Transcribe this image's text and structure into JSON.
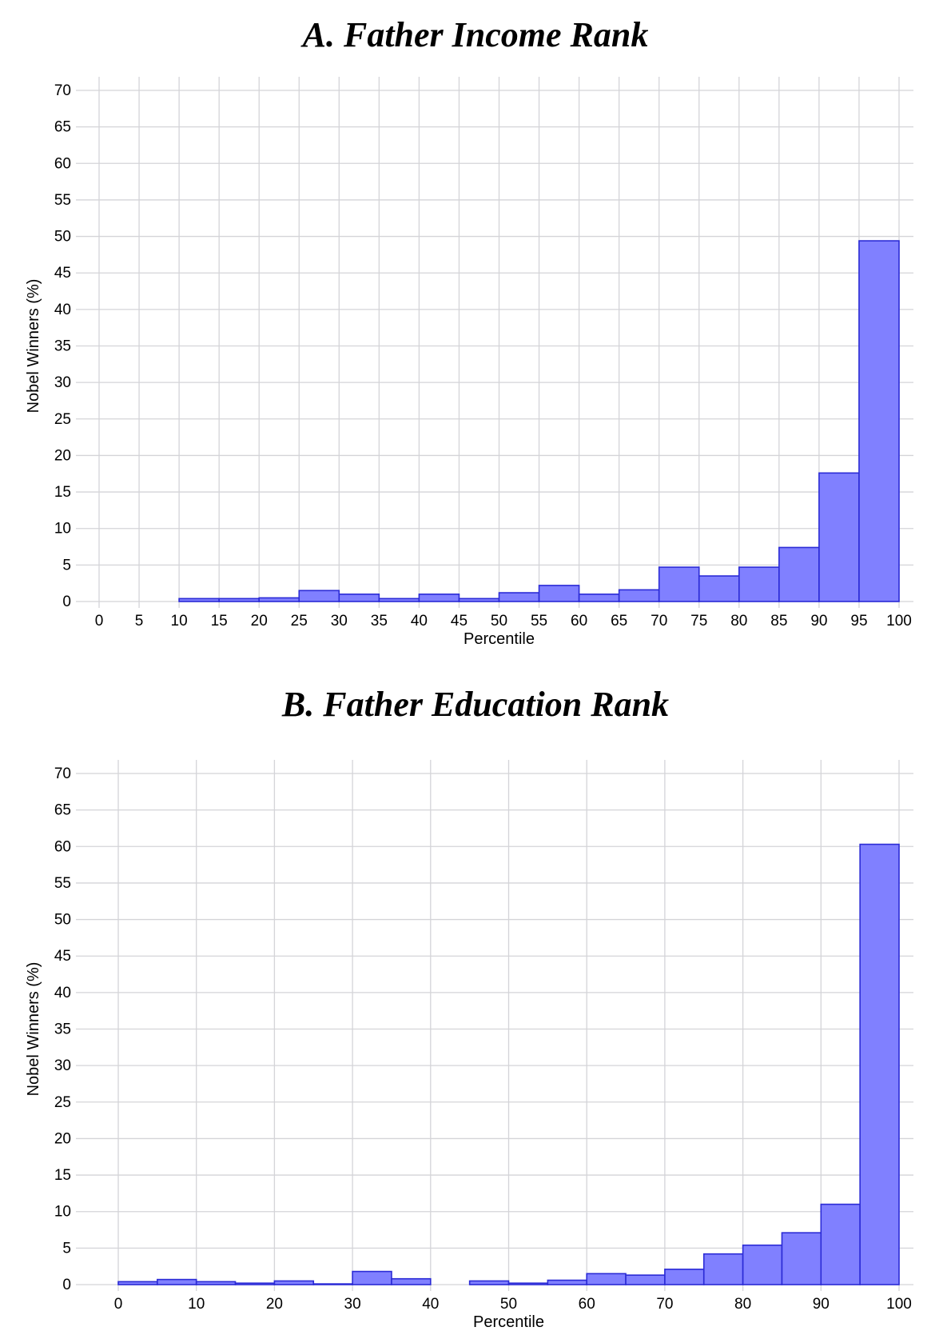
{
  "chart_data": [
    {
      "type": "bar",
      "title": "A. Father Income Rank",
      "xlabel": "Percentile",
      "ylabel": "Nobel Winners (%)",
      "xlim": [
        0,
        100
      ],
      "ylim": [
        0,
        70
      ],
      "xticks": [
        0,
        5,
        10,
        15,
        20,
        25,
        30,
        35,
        40,
        45,
        50,
        55,
        60,
        65,
        70,
        75,
        80,
        85,
        90,
        95,
        100
      ],
      "yticks": [
        0,
        5,
        10,
        15,
        20,
        25,
        30,
        35,
        40,
        45,
        50,
        55,
        60,
        65,
        70
      ],
      "bin_width": 5,
      "grid": true,
      "bars": [
        {
          "x": 10,
          "value": 0.4
        },
        {
          "x": 15,
          "value": 0.4
        },
        {
          "x": 20,
          "value": 0.5
        },
        {
          "x": 25,
          "value": 1.5
        },
        {
          "x": 30,
          "value": 1.0
        },
        {
          "x": 35,
          "value": 0.4
        },
        {
          "x": 40,
          "value": 1.0
        },
        {
          "x": 45,
          "value": 0.4
        },
        {
          "x": 50,
          "value": 1.2
        },
        {
          "x": 55,
          "value": 2.2
        },
        {
          "x": 60,
          "value": 1.0
        },
        {
          "x": 65,
          "value": 1.6
        },
        {
          "x": 70,
          "value": 4.7
        },
        {
          "x": 75,
          "value": 3.5
        },
        {
          "x": 80,
          "value": 4.7
        },
        {
          "x": 85,
          "value": 7.4
        },
        {
          "x": 90,
          "value": 17.6
        },
        {
          "x": 95,
          "value": 49.4
        }
      ]
    },
    {
      "type": "bar",
      "title": "B. Father Education Rank",
      "xlabel": "Percentile",
      "ylabel": "Nobel Winners (%)",
      "xlim": [
        0,
        100
      ],
      "ylim": [
        0,
        70
      ],
      "xticks": [
        0,
        10,
        20,
        30,
        40,
        50,
        60,
        70,
        80,
        90,
        100
      ],
      "yticks": [
        0,
        5,
        10,
        15,
        20,
        25,
        30,
        35,
        40,
        45,
        50,
        55,
        60,
        65,
        70
      ],
      "bin_width": 5,
      "grid": true,
      "bars": [
        {
          "x": 0,
          "value": 0.4
        },
        {
          "x": 5,
          "value": 0.7
        },
        {
          "x": 10,
          "value": 0.4
        },
        {
          "x": 15,
          "value": 0.2
        },
        {
          "x": 20,
          "value": 0.5
        },
        {
          "x": 25,
          "value": 0.1
        },
        {
          "x": 30,
          "value": 1.8
        },
        {
          "x": 35,
          "value": 0.8
        },
        {
          "x": 45,
          "value": 0.5
        },
        {
          "x": 50,
          "value": 0.2
        },
        {
          "x": 55,
          "value": 0.6
        },
        {
          "x": 60,
          "value": 1.5
        },
        {
          "x": 65,
          "value": 1.3
        },
        {
          "x": 70,
          "value": 2.1
        },
        {
          "x": 75,
          "value": 4.2
        },
        {
          "x": 80,
          "value": 5.4
        },
        {
          "x": 85,
          "value": 7.1
        },
        {
          "x": 90,
          "value": 11.0
        },
        {
          "x": 95,
          "value": 60.3
        }
      ]
    }
  ]
}
